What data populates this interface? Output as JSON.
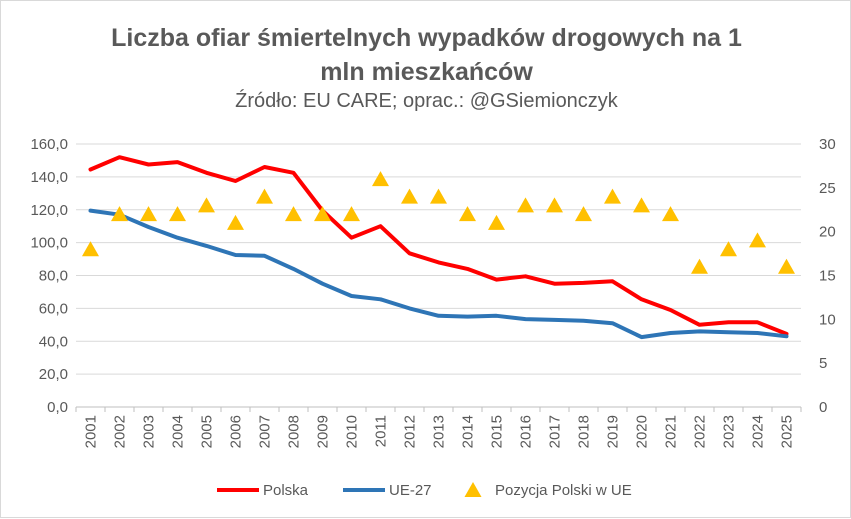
{
  "title_lines": [
    "Liczba ofiar śmiertelnych wypadków drogowych na 1",
    "mln mieszkańców"
  ],
  "subtitle": "Źródło: EU CARE; oprac.: @GSiemionczyk",
  "chart_data": {
    "type": "line",
    "x": [
      "2001",
      "2002",
      "2003",
      "2004",
      "2005",
      "2006",
      "2007",
      "2008",
      "2009",
      "2010",
      "2011",
      "2012",
      "2013",
      "2014",
      "2015",
      "2016",
      "2017",
      "2018",
      "2019",
      "2020",
      "2021",
      "2022",
      "2023",
      "2024",
      "2025"
    ],
    "series": [
      {
        "name": "Polska",
        "axis": "left",
        "kind": "line",
        "color": "#ff0000",
        "values": [
          144.5,
          152.0,
          147.5,
          149.0,
          142.5,
          137.5,
          146.0,
          142.5,
          119.5,
          103.0,
          110.0,
          93.5,
          88.0,
          84.0,
          77.5,
          79.5,
          75.0,
          75.5,
          76.5,
          65.5,
          59.0,
          50.0,
          51.5,
          51.5,
          44.5
        ]
      },
      {
        "name": "UE-27",
        "axis": "left",
        "kind": "line",
        "color": "#2e75b6",
        "values": [
          119.5,
          117.0,
          109.5,
          103.0,
          98.0,
          92.5,
          92.0,
          84.0,
          75.0,
          67.5,
          65.5,
          60.0,
          55.5,
          55.0,
          55.5,
          53.5,
          53.0,
          52.5,
          51.0,
          42.5,
          45.0,
          46.0,
          45.5,
          45.0,
          43.0
        ]
      },
      {
        "name": "Pozycja Polski w UE",
        "axis": "right",
        "kind": "marker",
        "color": "#ffc000",
        "values": [
          18,
          22,
          22,
          22,
          23,
          21,
          24,
          22,
          22,
          22,
          26,
          24,
          24,
          22,
          21,
          23,
          23,
          22,
          24,
          23,
          22,
          16,
          18,
          19,
          16
        ]
      }
    ],
    "y_left": {
      "min": 0,
      "max": 160,
      "step": 20,
      "tick_labels": [
        "0,0",
        "20,0",
        "40,0",
        "60,0",
        "80,0",
        "100,0",
        "120,0",
        "140,0",
        "160,0"
      ]
    },
    "y_right": {
      "min": 0,
      "max": 30,
      "step": 5,
      "tick_labels": [
        "0",
        "5",
        "10",
        "15",
        "20",
        "25",
        "30"
      ]
    },
    "grid": true,
    "legend": "bottom"
  }
}
